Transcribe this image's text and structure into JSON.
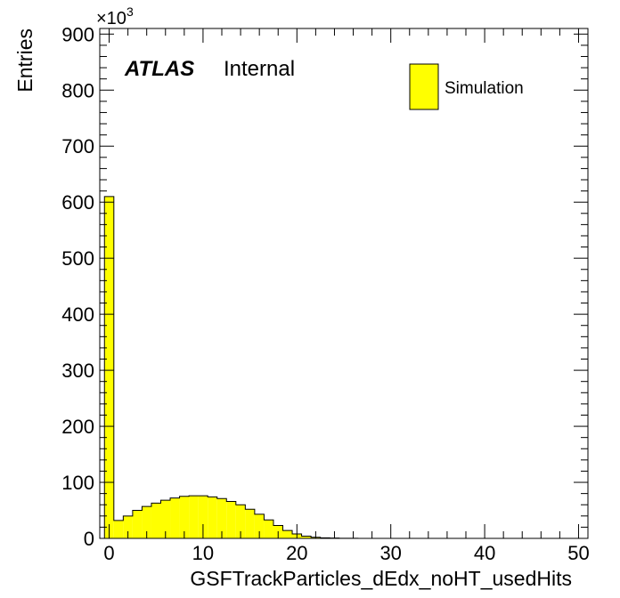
{
  "chart_data": {
    "type": "bar",
    "subtype": "histogram",
    "xlabel": "GSFTrackParticles_dEdx_noHT_usedHits",
    "ylabel": "Entries",
    "xlim": [
      -1,
      51
    ],
    "ylim": [
      0,
      910
    ],
    "y_multiplier": {
      "base": "×10",
      "exponent": "3"
    },
    "x_ticks": [
      0,
      10,
      20,
      30,
      40,
      50
    ],
    "y_ticks": [
      0,
      100,
      200,
      300,
      400,
      500,
      600,
      700,
      800,
      900
    ],
    "bin_width": 1,
    "bin_start": -0.5,
    "series": [
      {
        "name": "Simulation",
        "color": "#ffff00",
        "values": [
          610,
          32,
          40,
          50,
          57,
          63,
          68,
          72,
          75,
          76,
          76,
          74,
          71,
          66,
          60,
          52,
          43,
          33,
          23,
          14,
          8,
          4,
          2,
          1,
          0.5,
          0.2,
          0.1,
          0,
          0,
          0,
          0,
          0,
          0,
          0,
          0,
          0,
          0,
          0,
          0,
          0,
          0,
          0,
          0,
          0,
          0,
          0,
          0,
          0,
          0,
          0,
          0
        ]
      }
    ],
    "legend": {
      "placement": "top-right",
      "entries": [
        "Simulation"
      ]
    },
    "grid": false
  },
  "label": {
    "experiment": "ATLAS",
    "status": "Internal"
  }
}
